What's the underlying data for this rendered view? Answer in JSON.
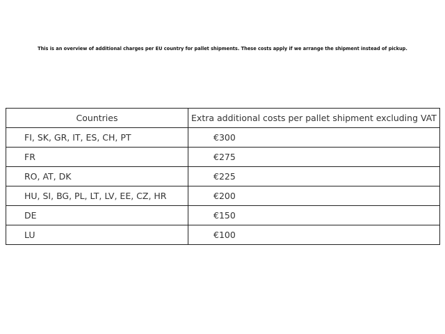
{
  "title": "This is an overview of additional charges per EU country for pallet shipments. These costs apply if we arrange the shipment instead of pickup.",
  "table": {
    "headers": [
      "Countries",
      "Extra additional costs per pallet shipment excluding VAT"
    ],
    "rows": [
      {
        "countries": "FI, SK, GR, IT, ES, CH, PT",
        "cost": "€300"
      },
      {
        "countries": "FR",
        "cost": "€275"
      },
      {
        "countries": "RO, AT, DK",
        "cost": "€225"
      },
      {
        "countries": "HU, SI, BG, PL, LT, LV, EE, CZ, HR",
        "cost": "€200"
      },
      {
        "countries": "DE",
        "cost": "€150"
      },
      {
        "countries": "LU",
        "cost": "€100"
      }
    ]
  }
}
